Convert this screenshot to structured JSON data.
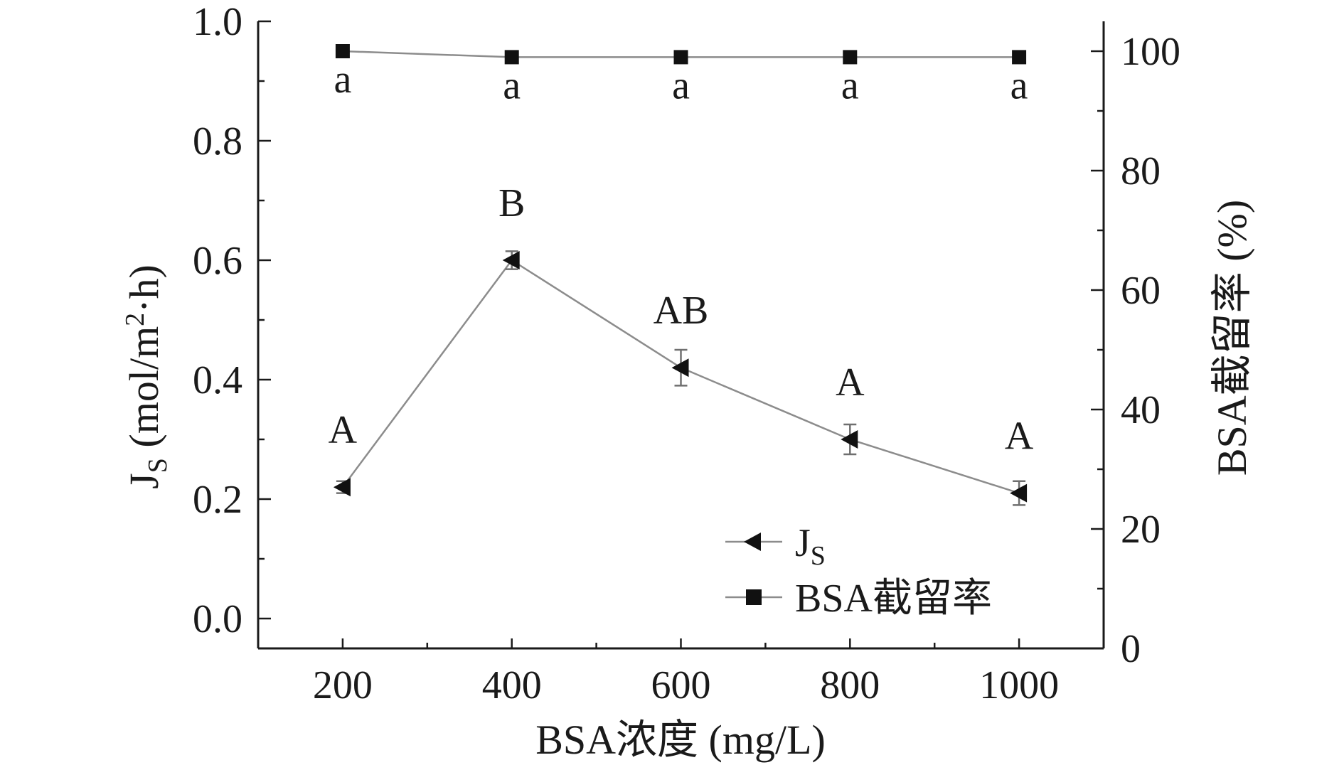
{
  "chart_data": {
    "type": "line",
    "xlabel": "BSA浓度 (mg/L)",
    "ylabel_left": "J",
    "ylabel_left_sub": "S",
    "ylabel_left_unit": "(mol/m",
    "ylabel_left_sup": "2",
    "ylabel_left_unit_end": "·h)",
    "ylabel_right": "BSA截留率 (%)",
    "x": [
      200,
      400,
      600,
      800,
      1000
    ],
    "xlim": [
      100,
      1100
    ],
    "xticks": [
      "200",
      "400",
      "600",
      "800",
      "1000"
    ],
    "ylim_left": [
      -0.05,
      1.0
    ],
    "yticks_left": [
      "0.0",
      "0.2",
      "0.4",
      "0.6",
      "0.8",
      "1.0"
    ],
    "ylim_right": [
      0,
      105
    ],
    "yticks_right": [
      "0",
      "20",
      "40",
      "60",
      "80",
      "100"
    ],
    "series": [
      {
        "name": "J",
        "name_sub": "S",
        "axis": "left",
        "marker": "left-triangle",
        "color": "#111111",
        "line_color": "#8c8c8c",
        "values": [
          0.22,
          0.6,
          0.42,
          0.3,
          0.21
        ],
        "errors": [
          0.01,
          0.015,
          0.03,
          0.025,
          0.02
        ],
        "labels": [
          "A",
          "B",
          "AB",
          "A",
          "A"
        ]
      },
      {
        "name": "BSA截留率",
        "axis": "right",
        "marker": "square",
        "color": "#111111",
        "line_color": "#8c8c8c",
        "values": [
          100,
          99,
          99,
          99,
          99
        ],
        "labels": [
          "a",
          "a",
          "a",
          "a",
          "a"
        ]
      }
    ],
    "legend": "bottom-right",
    "grid": false
  }
}
